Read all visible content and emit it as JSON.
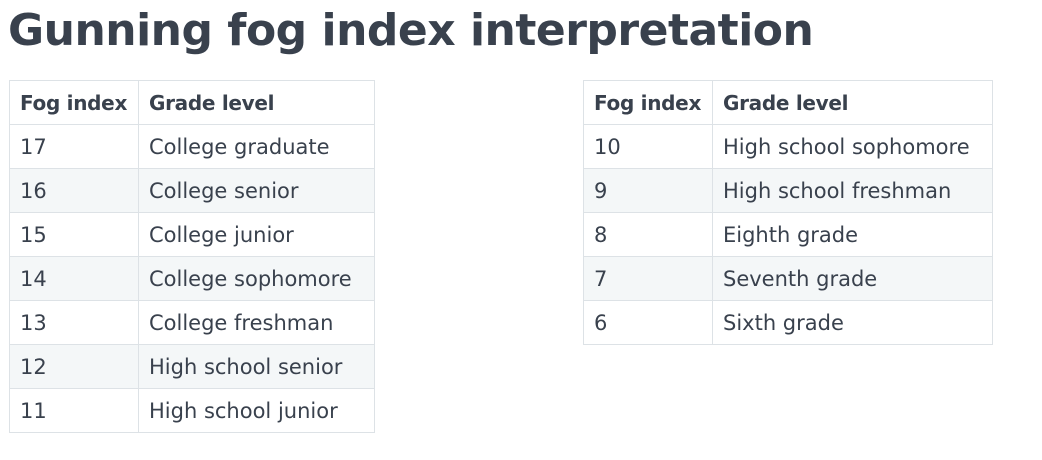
{
  "title": "Gunning fog index interpretation",
  "colors": {
    "text": "#39414d",
    "border": "#dde2e6",
    "stripe": "#f4f7f8"
  },
  "tables": [
    {
      "headers": [
        "Fog index",
        "Grade level"
      ],
      "rows": [
        [
          "17",
          "College graduate"
        ],
        [
          "16",
          "College senior"
        ],
        [
          "15",
          "College junior"
        ],
        [
          "14",
          "College sophomore"
        ],
        [
          "13",
          "College freshman"
        ],
        [
          "12",
          "High school senior"
        ],
        [
          "11",
          "High school junior"
        ]
      ]
    },
    {
      "headers": [
        "Fog index",
        "Grade level"
      ],
      "rows": [
        [
          "10",
          "High school sophomore"
        ],
        [
          "9",
          "High school freshman"
        ],
        [
          "8",
          "Eighth grade"
        ],
        [
          "7",
          "Seventh grade"
        ],
        [
          "6",
          "Sixth grade"
        ]
      ]
    }
  ]
}
